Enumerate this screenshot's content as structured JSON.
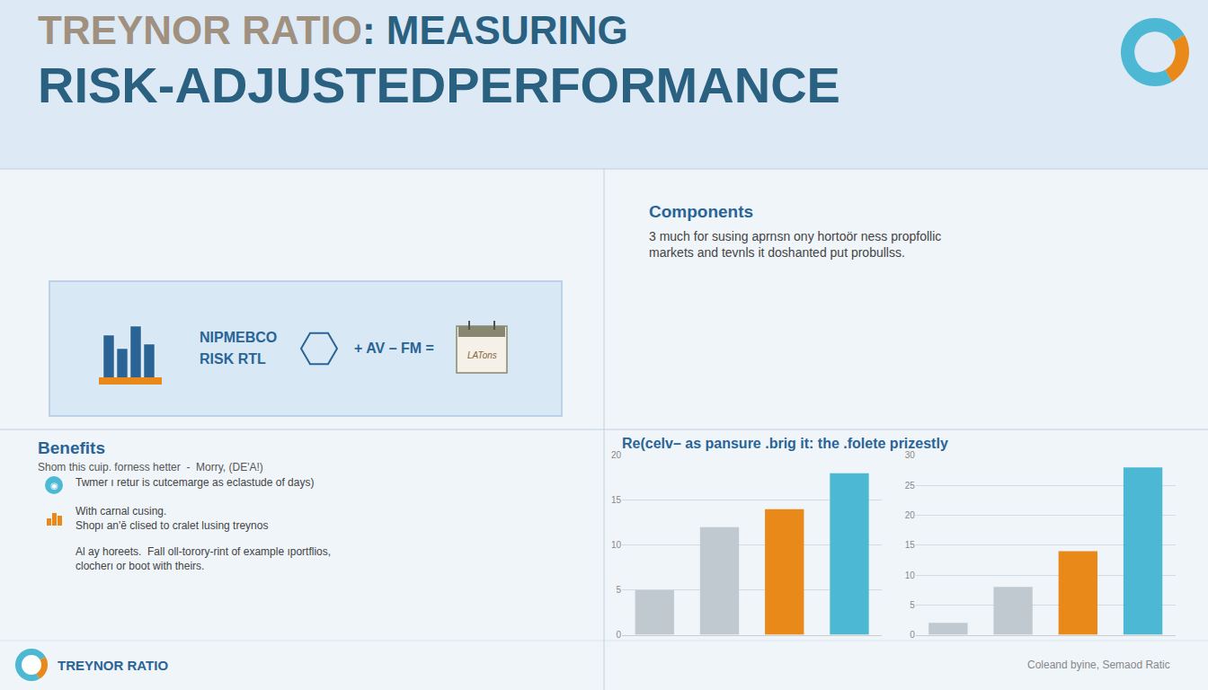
{
  "chart_data": [
    {
      "type": "bar",
      "categories": [
        null,
        null,
        null,
        null
      ],
      "values": [
        5,
        12,
        14,
        18
      ],
      "colors": [
        "#c0c8d0",
        "#c0c8d0",
        "#e8891a",
        "#4db8d4"
      ],
      "ylim": [
        0,
        20
      ],
      "yticks": [
        0,
        5,
        10,
        15,
        20
      ],
      "grid": true,
      "tick_labels": "y",
      "annotations": [
        "TREYNOR RATIO",
        ": MEASURING",
        "RISK-ADJUSTEDPERFORMANCE",
        "NIPMEBCO",
        "RISK RTL",
        "+ AV – FM =",
        "LATons",
        "Components",
        "3 much for susing aprnsn ony hortoör ness propfollic\nmarkets and tevnls it doshanted put probullss.",
        "Benefits",
        "Shom this cuip. forness hetter  -  Morry, (DE'A!)",
        "Twmer ı retur is cutcemarge as eclastude of days)",
        "◉",
        "With carnal cusing.\nShopı an'ē clised to cralet lusing treynos",
        "Al ay horeets.  Fall oll-torory-rint of example ıportflios,\nclocherı or boot with theirs.",
        "Re(celv– as pansure .brig it: the .folete prizestly",
        "TREYNOR RATIO",
        "Coleand byine, Semaod Ratic"
      ]
    },
    {
      "type": "bar",
      "categories": [
        null,
        null,
        null,
        null
      ],
      "values": [
        2,
        8,
        14,
        28
      ],
      "colors": [
        "#c0c8d0",
        "#c0c8d0",
        "#e8891a",
        "#4db8d4"
      ],
      "ylim": [
        0,
        30
      ],
      "yticks": [
        0,
        5,
        10,
        15,
        20,
        25,
        30
      ],
      "grid": true,
      "tick_labels": "y"
    }
  ]
}
